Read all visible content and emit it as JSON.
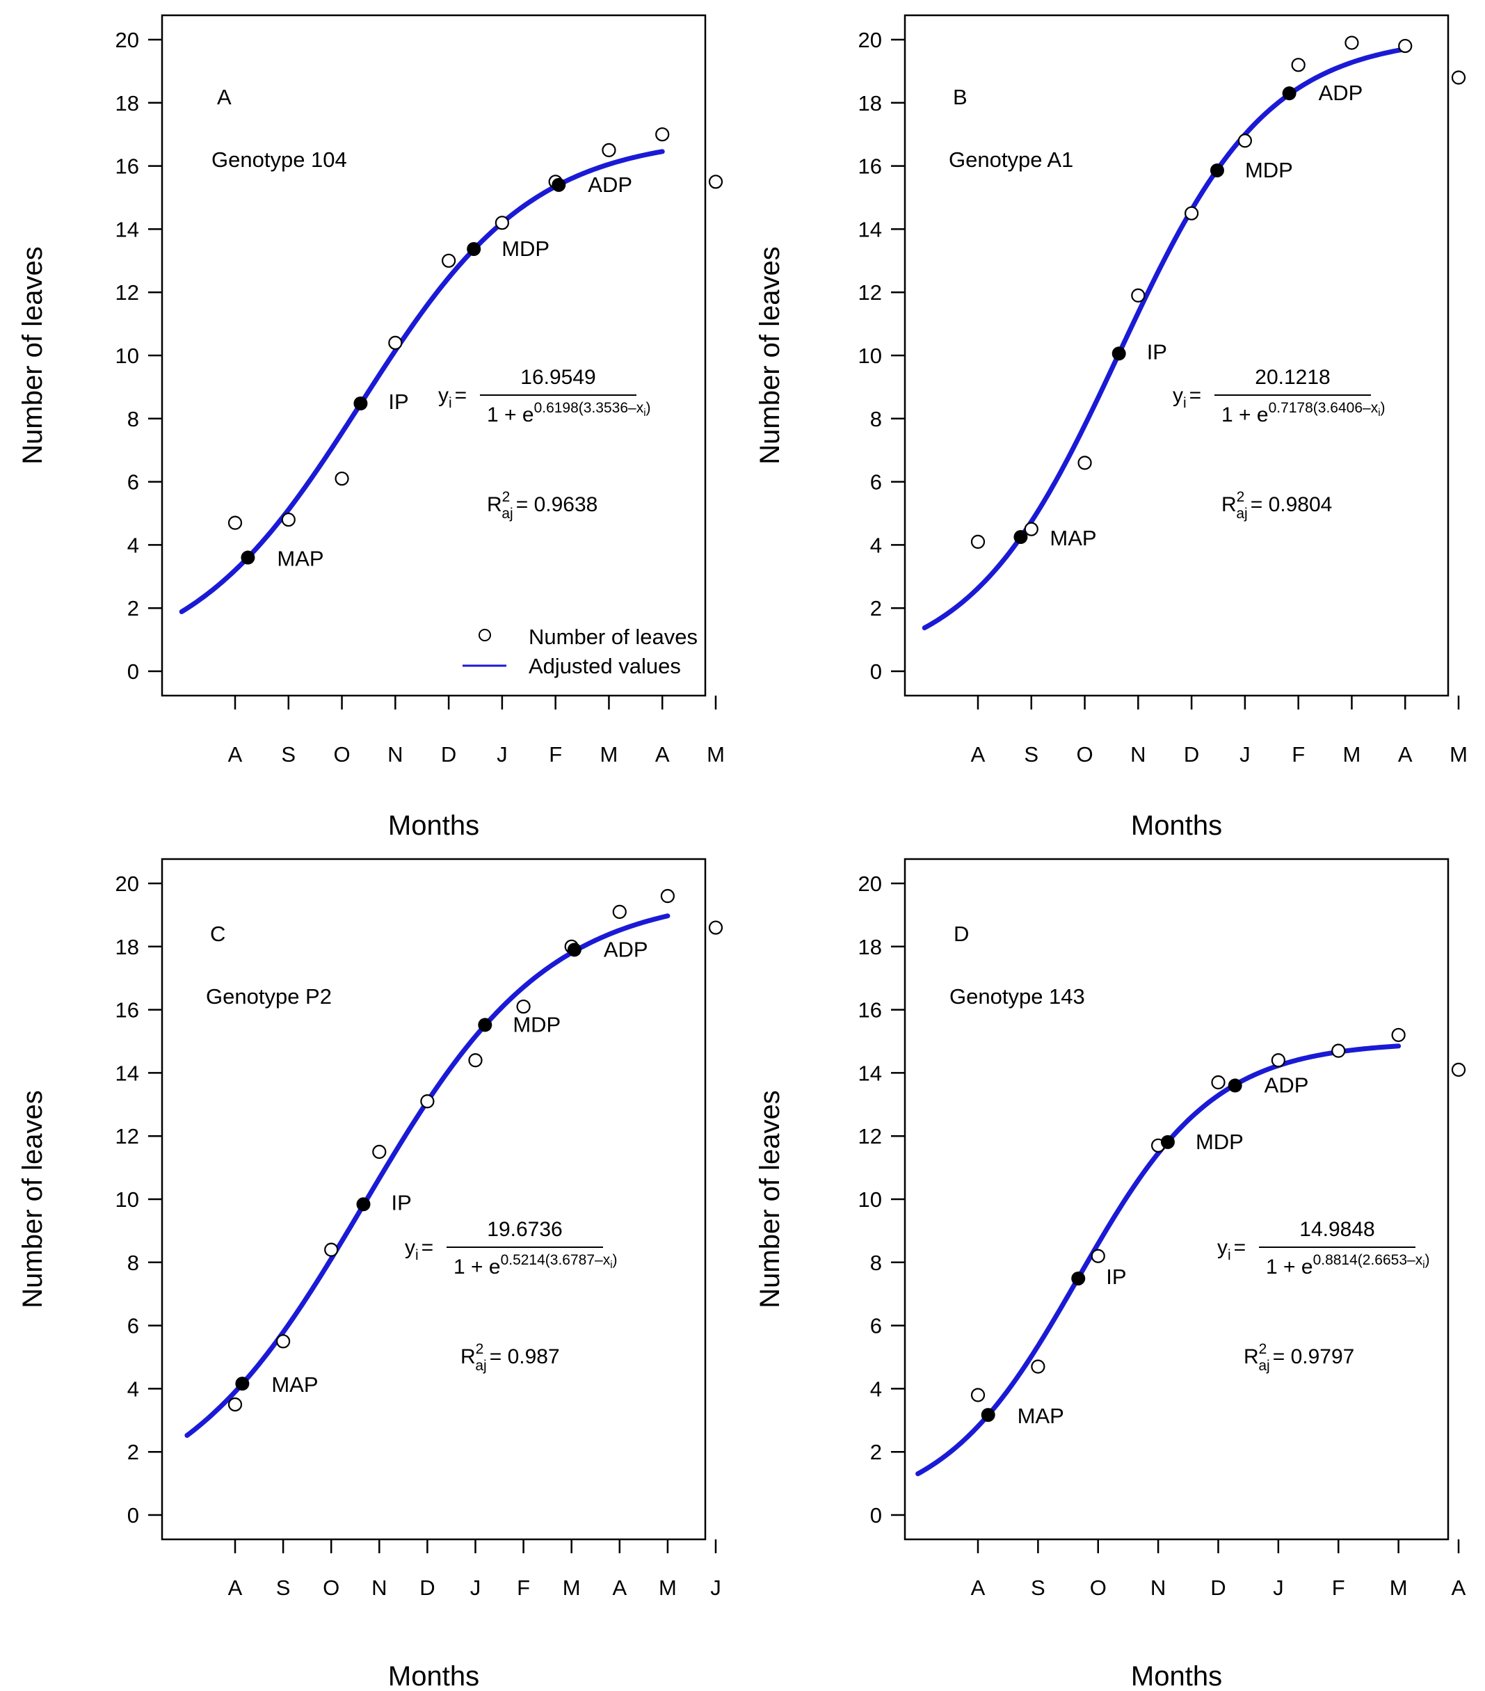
{
  "chart_data": [
    {
      "type": "scatter",
      "panel_letter": "A",
      "genotype_label": "Genotype 104",
      "xlabel": "Months",
      "ylabel": "Number of leaves",
      "ylim": [
        0,
        20
      ],
      "yticks": [
        0,
        2,
        4,
        6,
        8,
        10,
        12,
        14,
        16,
        18,
        20
      ],
      "xlim": [
        -0.5,
        9
      ],
      "categories": [
        "A",
        "S",
        "O",
        "N",
        "D",
        "J",
        "F",
        "M",
        "A",
        "M"
      ],
      "series": [
        {
          "name": "Number of leaves",
          "x": [
            0,
            1,
            2,
            3,
            4,
            5,
            6,
            7,
            8,
            9
          ],
          "values": [
            4.7,
            4.8,
            6.1,
            10.4,
            13.0,
            14.2,
            15.5,
            16.5,
            17.0,
            15.5
          ]
        },
        {
          "name": "Adjusted values",
          "model": "logistic",
          "a": 16.9549,
          "b": 0.6198,
          "c": 3.3536,
          "x_range": [
            -1,
            8
          ]
        }
      ],
      "critical_points": [
        {
          "label": "MAP",
          "x": 0.24,
          "y": 3.6
        },
        {
          "label": "IP",
          "x": 2.35,
          "y": 8.48
        },
        {
          "label": "MDP",
          "x": 4.47,
          "y": 13.37
        },
        {
          "label": "ADP",
          "x": 6.06,
          "y": 15.4
        }
      ],
      "equation": {
        "lhs": "y",
        "lhs_sub": "i",
        "numerator": "16.9549",
        "den_base": "1 + e",
        "den_exp": "0.6198(3.3536–x",
        "den_exp_sub": "i",
        "den_exp_close": ")"
      },
      "r2": {
        "lhs": "R",
        "sup": "2",
        "sub": "aj",
        "value": "0.9638"
      },
      "legend": {
        "points": "Number of leaves",
        "line": "Adjusted values"
      }
    },
    {
      "type": "scatter",
      "panel_letter": "B",
      "genotype_label": "Genotype A1",
      "xlabel": "Months",
      "ylabel": "Number of leaves",
      "ylim": [
        0,
        20
      ],
      "yticks": [
        0,
        2,
        4,
        6,
        8,
        10,
        12,
        14,
        16,
        18,
        20
      ],
      "xlim": [
        -0.5,
        9
      ],
      "categories": [
        "A",
        "S",
        "O",
        "N",
        "D",
        "J",
        "F",
        "M",
        "A",
        "M"
      ],
      "series": [
        {
          "name": "Number of leaves",
          "x": [
            0,
            1,
            2,
            3,
            4,
            5,
            6,
            7,
            8,
            9
          ],
          "values": [
            4.1,
            4.5,
            6.6,
            11.9,
            14.5,
            16.8,
            19.2,
            19.9,
            19.8,
            18.8
          ]
        },
        {
          "name": "Adjusted values",
          "model": "logistic",
          "a": 20.1218,
          "b": 0.7178,
          "c": 3.6406,
          "x_range": [
            -1,
            8
          ]
        }
      ],
      "critical_points": [
        {
          "label": "MAP",
          "x": 0.8,
          "y": 4.25
        },
        {
          "label": "IP",
          "x": 2.64,
          "y": 10.06
        },
        {
          "label": "MDP",
          "x": 4.48,
          "y": 15.86
        },
        {
          "label": "ADP",
          "x": 5.83,
          "y": 18.3
        }
      ],
      "equation": {
        "lhs": "y",
        "lhs_sub": "i",
        "numerator": "20.1218",
        "den_base": "1 + e",
        "den_exp": "0.7178(3.6406–x",
        "den_exp_sub": "i",
        "den_exp_close": ")"
      },
      "r2": {
        "lhs": "R",
        "sup": "2",
        "sub": "aj",
        "value": "0.9804"
      }
    },
    {
      "type": "scatter",
      "panel_letter": "C",
      "genotype_label": "Genotype P2",
      "xlabel": "Months",
      "ylabel": "Number of leaves",
      "ylim": [
        0,
        20
      ],
      "yticks": [
        0,
        2,
        4,
        6,
        8,
        10,
        12,
        14,
        16,
        18,
        20
      ],
      "xlim": [
        -0.5,
        10
      ],
      "categories": [
        "A",
        "S",
        "O",
        "N",
        "D",
        "J",
        "F",
        "M",
        "A",
        "M",
        "J"
      ],
      "series": [
        {
          "name": "Number of leaves",
          "x": [
            0,
            1,
            2,
            3,
            4,
            5,
            6,
            7,
            8,
            9,
            10
          ],
          "values": [
            3.5,
            5.5,
            8.4,
            11.5,
            13.1,
            14.4,
            16.1,
            18.0,
            19.1,
            19.6,
            18.6
          ]
        },
        {
          "name": "Adjusted values",
          "model": "logistic",
          "a": 19.6736,
          "b": 0.5214,
          "c": 3.6787,
          "x_range": [
            -1,
            9
          ]
        }
      ],
      "critical_points": [
        {
          "label": "MAP",
          "x": 0.15,
          "y": 4.16
        },
        {
          "label": "IP",
          "x": 2.67,
          "y": 9.84
        },
        {
          "label": "MDP",
          "x": 5.2,
          "y": 15.52
        },
        {
          "label": "ADP",
          "x": 7.06,
          "y": 17.9
        }
      ],
      "equation": {
        "lhs": "y",
        "lhs_sub": "i",
        "numerator": "19.6736",
        "den_base": "1 + e",
        "den_exp": "0.5214(3.6787–x",
        "den_exp_sub": "i",
        "den_exp_close": ")"
      },
      "r2": {
        "lhs": "R",
        "sup": "2",
        "sub": "aj",
        "value": "0.987"
      }
    },
    {
      "type": "scatter",
      "panel_letter": "D",
      "genotype_label": "Genotype 143",
      "xlabel": "Months",
      "ylabel": "Number of leaves",
      "ylim": [
        0,
        20
      ],
      "yticks": [
        0,
        2,
        4,
        6,
        8,
        10,
        12,
        14,
        16,
        18,
        20
      ],
      "xlim": [
        -0.5,
        8
      ],
      "categories": [
        "A",
        "S",
        "O",
        "N",
        "D",
        "J",
        "F",
        "M",
        "A"
      ],
      "series": [
        {
          "name": "Number of leaves",
          "x": [
            0,
            1,
            2,
            3,
            4,
            5,
            6,
            7,
            8
          ],
          "values": [
            3.8,
            4.7,
            8.2,
            11.7,
            13.7,
            14.4,
            14.7,
            15.2,
            14.1
          ]
        },
        {
          "name": "Adjusted values",
          "model": "logistic",
          "a": 14.9848,
          "b": 0.8814,
          "c": 2.6653,
          "x_range": [
            -1,
            7
          ]
        }
      ],
      "critical_points": [
        {
          "label": "MAP",
          "x": 0.17,
          "y": 3.17
        },
        {
          "label": "IP",
          "x": 1.67,
          "y": 7.49
        },
        {
          "label": "MDP",
          "x": 3.16,
          "y": 11.81
        },
        {
          "label": "ADP",
          "x": 4.28,
          "y": 13.6
        }
      ],
      "equation": {
        "lhs": "y",
        "lhs_sub": "i",
        "numerator": "14.9848",
        "den_base": "1 + e",
        "den_exp": "0.8814(2.6653–x",
        "den_exp_sub": "i",
        "den_exp_close": ")"
      },
      "r2": {
        "lhs": "R",
        "sup": "2",
        "sub": "aj",
        "value": "0.9797"
      }
    }
  ],
  "colors": {
    "curve": "#1a1ad6",
    "points_fill": "#000000",
    "open_points": "#000000",
    "axis": "#000000"
  }
}
